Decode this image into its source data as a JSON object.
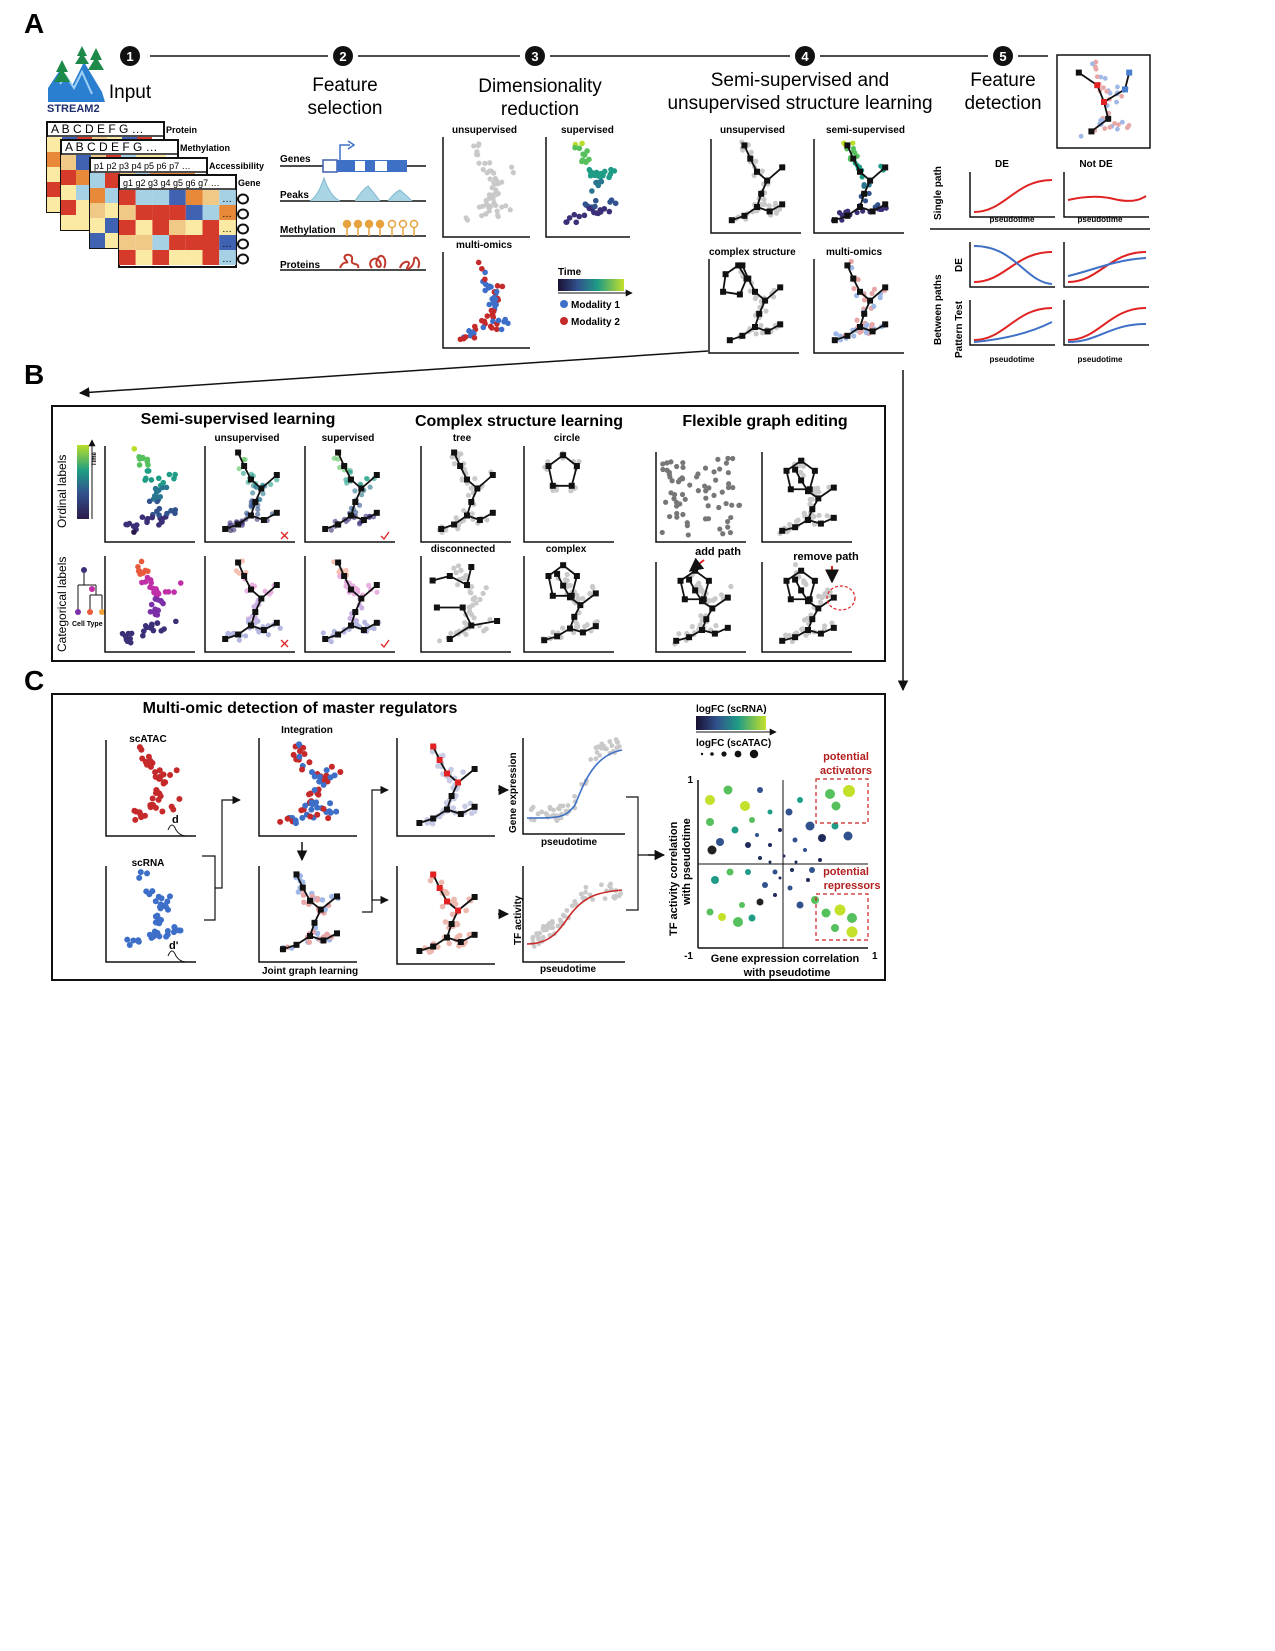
{
  "panels": {
    "a": "A",
    "b": "B",
    "c": "C"
  },
  "logo": "STREAM2",
  "steps": [
    {
      "num": "1",
      "title": [
        "Input"
      ]
    },
    {
      "num": "2",
      "title": [
        "Feature",
        "selection"
      ]
    },
    {
      "num": "3",
      "title": [
        "Dimensionality",
        "reduction"
      ]
    },
    {
      "num": "4",
      "title": [
        "Semi-supervised and",
        "unsupervised structure learning"
      ]
    },
    {
      "num": "5",
      "title": [
        "Feature",
        "detection"
      ]
    }
  ],
  "input": {
    "sheets": [
      {
        "label": "Protein",
        "header": "A  B  C  D  E  F  G …"
      },
      {
        "label": "Methylation",
        "header": "A  B  C  D  E  F  G …"
      },
      {
        "label": "Accessibility",
        "header": "p1 p2 p3 p4 p5 p6 p7 …"
      },
      {
        "label": "Gene",
        "header": "g1 g2 g3 g4 g5 g6 g7 …"
      }
    ],
    "ellipsis": "…"
  },
  "feature_selection": {
    "rows": [
      "Genes",
      "Peaks",
      "Methylation",
      "Proteins"
    ]
  },
  "dimred": {
    "labels": [
      "unsupervised",
      "supervised",
      "multi-omics"
    ],
    "legend_title": "Time",
    "modalities": [
      "Modality 1",
      "Modality 2"
    ]
  },
  "structure": {
    "labels": [
      "unsupervised",
      "semi-supervised",
      "complex structure",
      "multi-omics"
    ]
  },
  "feature_detection": {
    "col_labels": [
      "DE",
      "Not DE"
    ],
    "row_labels": [
      "Single path",
      "Between paths",
      "DE",
      "Pattern Test"
    ],
    "xaxis": "pseudotime"
  },
  "section_b": {
    "titles": [
      "Semi-supervised learning",
      "Complex structure learning",
      "Flexible graph editing"
    ],
    "side_labels": [
      "Ordinal labels",
      "Categorical labels"
    ],
    "time_label": "Time",
    "cell_type": "Cell Type",
    "col_labels": [
      "unsupervised",
      "supervised"
    ],
    "complex_labels": [
      "tree",
      "circle",
      "disconnected",
      "complex"
    ],
    "edit_labels": [
      "add path",
      "remove path"
    ]
  },
  "section_c": {
    "title": "Multi-omic detection of master regulators",
    "labels": {
      "scatac": "scATAC",
      "scrna": "scRNA",
      "integration": "Integration",
      "joint": "Joint graph learning",
      "d": "d",
      "dprime": "d'",
      "gene_expr": "Gene expression",
      "tf_act": "TF activity",
      "pseudotime": "pseudotime",
      "logfc_rna": "logFC (scRNA)",
      "logfc_atac": "logFC (scATAC)",
      "activators": [
        "potential",
        "activators"
      ],
      "repressors": [
        "potential",
        "repressors"
      ],
      "yaxis": [
        "TF activity correlation",
        "with pseudotime"
      ],
      "xaxis": [
        "Gene expression correlation",
        "with pseudotime"
      ],
      "tick_pos": "1",
      "tick_neg": "-1"
    }
  },
  "colors": {
    "red": "#e02222",
    "blue": "#3e70c6",
    "modality1": "#3d6fc9",
    "modality2": "#c5292a",
    "grey_dot": "#c9c9c9",
    "viridis": [
      "#2c1a4a",
      "#3b2f78",
      "#31528d",
      "#28768f",
      "#1e9c85",
      "#56c15c",
      "#b9de28"
    ],
    "categorical": [
      "#e75a3c",
      "#f0a23a",
      "#c02fa8",
      "#7b2fa8",
      "#3b2f78"
    ]
  }
}
